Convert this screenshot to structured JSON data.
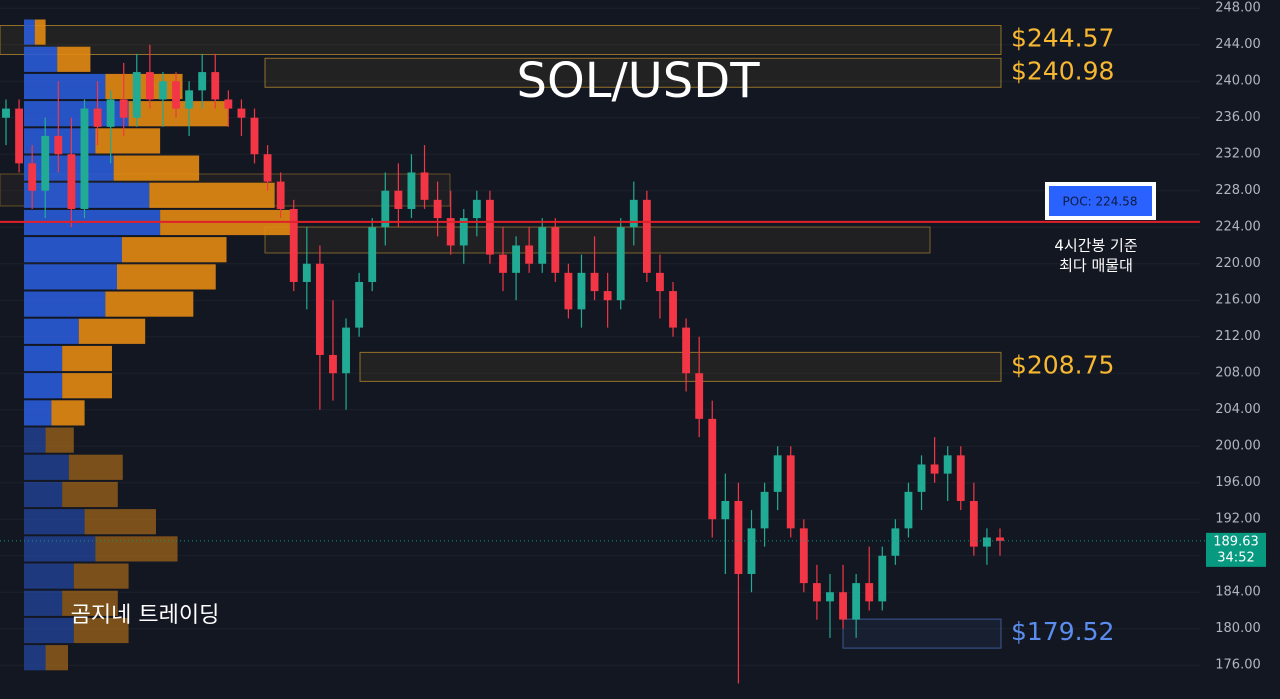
{
  "chart_data": {
    "type": "candlestick",
    "title": "SOL/USDT",
    "watermark": "곰지네 트레이딩",
    "ylim": [
      172.3,
      248.9
    ],
    "yticks": [
      {
        "value": 248,
        "label": "248.00"
      },
      {
        "value": 244,
        "label": "244.00"
      },
      {
        "value": 240,
        "label": "240.00"
      },
      {
        "value": 236,
        "label": "236.00"
      },
      {
        "value": 232,
        "label": "232.00"
      },
      {
        "value": 228,
        "label": "228.00"
      },
      {
        "value": 224,
        "label": "224.00"
      },
      {
        "value": 220,
        "label": "220.00"
      },
      {
        "value": 216,
        "label": "216.00"
      },
      {
        "value": 212,
        "label": "212.00"
      },
      {
        "value": 208,
        "label": "208.00"
      },
      {
        "value": 204,
        "label": "204.00"
      },
      {
        "value": 200,
        "label": "200.00"
      },
      {
        "value": 196,
        "label": "196.00"
      },
      {
        "value": 192,
        "label": "192.00"
      },
      {
        "value": 188,
        "label": "188.00"
      },
      {
        "value": 184,
        "label": "184.00"
      },
      {
        "value": 180,
        "label": "180.00"
      },
      {
        "value": 176,
        "label": "176.00"
      }
    ],
    "grid": true,
    "up_color": "#22ab94",
    "down_color": "#f23645",
    "open": [
      236,
      237,
      231,
      228,
      234,
      232,
      226,
      237,
      235,
      238,
      236,
      241,
      238,
      240,
      237,
      239,
      241,
      238,
      237,
      236,
      232,
      229,
      226,
      218,
      220,
      210,
      208,
      213,
      218,
      224,
      228,
      226,
      230,
      227,
      225,
      222,
      225,
      227,
      221,
      219,
      222,
      220,
      224,
      219,
      215,
      219,
      217,
      216,
      224,
      227,
      219,
      217,
      213,
      208,
      203,
      192,
      194,
      186,
      191,
      195,
      199,
      191,
      185,
      183,
      184,
      181,
      185,
      183,
      188,
      191,
      195,
      198,
      197,
      199,
      194,
      189,
      190
    ],
    "high": [
      238,
      238,
      233,
      236,
      240,
      236,
      238,
      240,
      239,
      242,
      243,
      244,
      241,
      241,
      240,
      243,
      243,
      239,
      238,
      237,
      233,
      230,
      227,
      224,
      222,
      216,
      214,
      219,
      225,
      230,
      231,
      232,
      233,
      229,
      228,
      226,
      228,
      228,
      224,
      223,
      224,
      225,
      225,
      220,
      221,
      223,
      219,
      225,
      229,
      228,
      221,
      218,
      214,
      212,
      205,
      197,
      196,
      193,
      196,
      200,
      200,
      192,
      187,
      186,
      187,
      186,
      189,
      189,
      192,
      196,
      199,
      201,
      200,
      200,
      196,
      191,
      191
    ],
    "low": [
      233,
      230,
      226,
      225,
      230,
      224,
      225,
      233,
      231,
      234,
      235,
      237,
      235,
      236,
      234,
      237,
      237,
      235,
      234,
      231,
      228,
      225,
      217,
      215,
      204,
      205,
      204,
      212,
      217,
      222,
      224,
      225,
      226,
      223,
      221,
      220,
      223,
      220,
      217,
      216,
      219,
      219,
      218,
      214,
      213,
      216,
      213,
      215,
      222,
      218,
      214,
      212,
      206,
      201,
      190,
      186,
      174,
      184,
      189,
      193,
      190,
      184,
      181,
      179,
      180,
      179,
      182,
      182,
      187,
      190,
      193,
      196,
      194,
      193,
      188,
      187,
      188
    ],
    "close": [
      237,
      231,
      228,
      234,
      232,
      226,
      237,
      235,
      238,
      236,
      241,
      238,
      240,
      237,
      239,
      241,
      238,
      237,
      236,
      232,
      229,
      226,
      218,
      220,
      210,
      208,
      213,
      218,
      224,
      228,
      226,
      230,
      227,
      225,
      222,
      225,
      227,
      221,
      219,
      222,
      220,
      224,
      219,
      215,
      219,
      217,
      216,
      224,
      227,
      219,
      217,
      213,
      208,
      203,
      192,
      194,
      186,
      191,
      195,
      199,
      191,
      185,
      183,
      184,
      181,
      185,
      183,
      188,
      191,
      195,
      198,
      197,
      199,
      194,
      189,
      190,
      189.63
    ],
    "levels": [
      {
        "value": 244.57,
        "label": "$244.57",
        "color": "#f7b731"
      },
      {
        "value": 240.98,
        "label": "$240.98",
        "color": "#f7b731"
      },
      {
        "value": 208.75,
        "label": "$208.75",
        "color": "#f7b731"
      },
      {
        "value": 179.52,
        "label": "$179.52",
        "color": "#5b8def"
      }
    ],
    "poc": {
      "value": 224.58,
      "label": "POC: 224.58",
      "color": "#e2202b",
      "note": [
        "4시간봉 기준",
        "최다 매물대"
      ]
    },
    "last_price": {
      "value": 189.63,
      "label": "189.63",
      "countdown": "34:52",
      "color": "#089981"
    },
    "volume_profile": {
      "buy": [
        13,
        40,
        98,
        126,
        86,
        108,
        151,
        164,
        118,
        112,
        98,
        66,
        46,
        46,
        33,
        26,
        54,
        46,
        73,
        86,
        60,
        46,
        60,
        26
      ],
      "sell": [
        13,
        40,
        93,
        120,
        78,
        103,
        151,
        164,
        126,
        119,
        106,
        80,
        60,
        60,
        40,
        34,
        65,
        67,
        86,
        99,
        66,
        67,
        66,
        27
      ],
      "buy_color": "#2a5bd7",
      "sell_color": "#e38a12"
    }
  }
}
